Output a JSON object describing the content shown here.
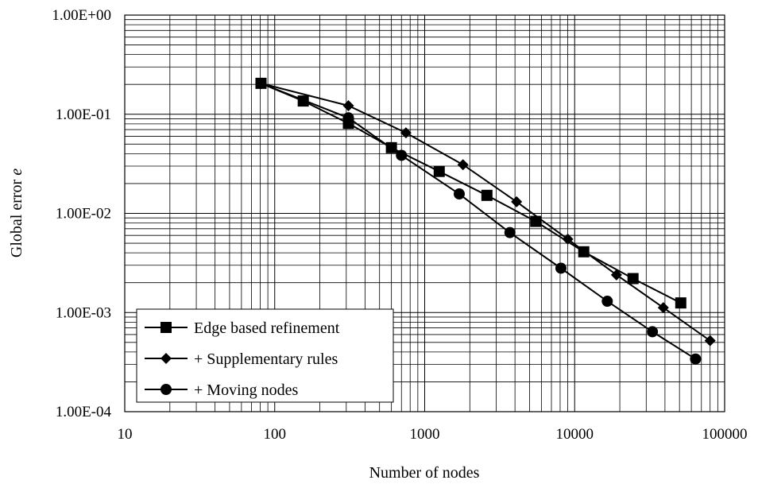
{
  "chart_data": {
    "type": "line",
    "title": "",
    "xlabel": "Number of nodes",
    "ylabel_text": "Global error ",
    "ylabel_var": "e",
    "x_scale": "log",
    "y_scale": "log",
    "xlim": [
      10,
      100000
    ],
    "ylim": [
      0.0001,
      1
    ],
    "x_ticks": [
      10,
      100,
      1000,
      10000,
      100000
    ],
    "x_tick_labels": [
      "10",
      "100",
      "1000",
      "10000",
      "100000"
    ],
    "y_ticks": [
      1,
      0.1,
      0.01,
      0.001,
      0.0001
    ],
    "y_tick_labels": [
      "1.00E+00",
      "1.00E-01",
      "1.00E-02",
      "1.00E-03",
      "1.00E-04"
    ],
    "grid": true,
    "legend_position": "bottom-left",
    "series": [
      {
        "name": "Edge based refinement",
        "marker": "square",
        "color": "#000000",
        "x": [
          81,
          155,
          310,
          600,
          1250,
          2600,
          5500,
          11500,
          24500,
          51000
        ],
        "y": [
          0.205,
          0.136,
          0.081,
          0.046,
          0.0265,
          0.0152,
          0.0083,
          0.0041,
          0.0022,
          0.00125
        ]
      },
      {
        "name": "+ Supplementary rules",
        "marker": "diamond",
        "color": "#000000",
        "x": [
          81,
          310,
          750,
          1800,
          4100,
          9000,
          19000,
          39000,
          80000
        ],
        "y": [
          0.205,
          0.122,
          0.065,
          0.031,
          0.0131,
          0.0055,
          0.0024,
          0.00112,
          0.00052
        ]
      },
      {
        "name": "+ Moving nodes",
        "marker": "circle",
        "color": "#000000",
        "x": [
          81,
          310,
          700,
          1700,
          3700,
          8100,
          16500,
          33000,
          64000
        ],
        "y": [
          0.205,
          0.092,
          0.0385,
          0.0157,
          0.0064,
          0.0028,
          0.0013,
          0.00064,
          0.00034
        ]
      }
    ]
  }
}
